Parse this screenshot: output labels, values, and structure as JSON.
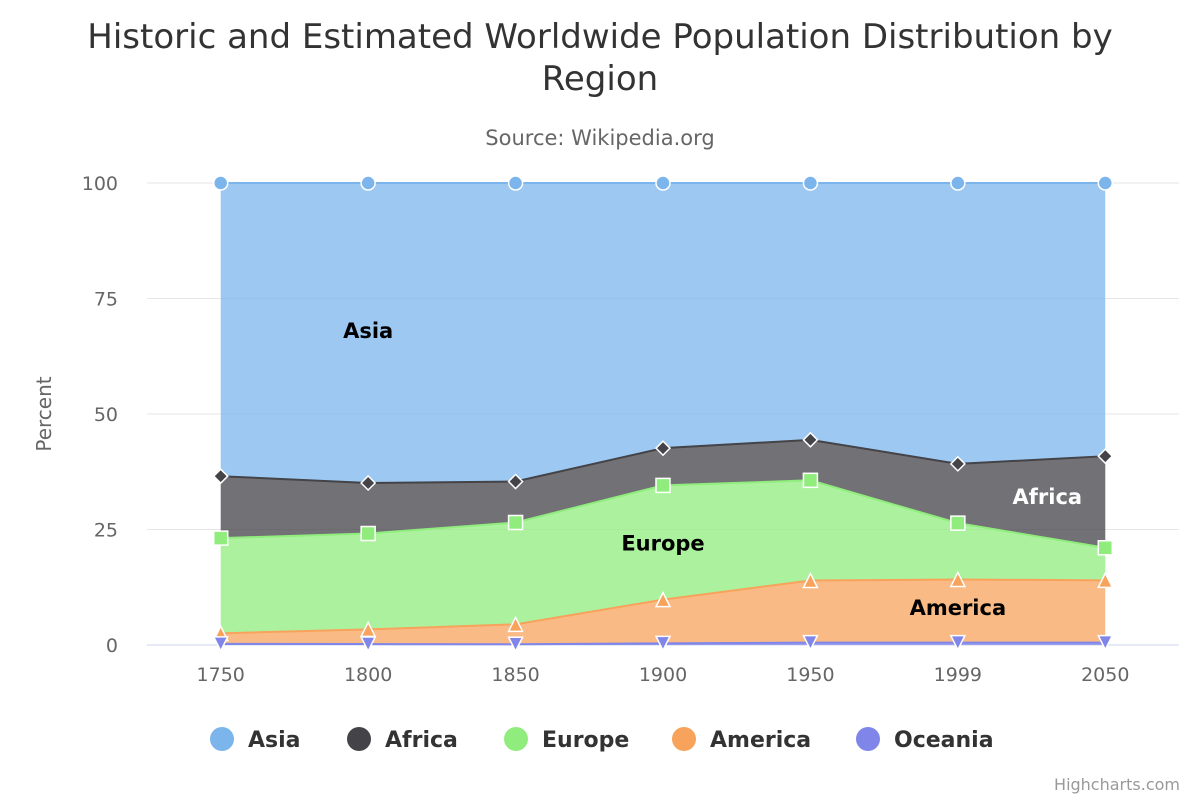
{
  "chart_data": {
    "type": "area",
    "stacking": "percent",
    "title": "Historic and Estimated Worldwide Population Distribution by Region",
    "subtitle": "Source: Wikipedia.org",
    "ylabel": "Percent",
    "xlabel": "",
    "ylim": [
      0,
      100
    ],
    "yticks": [
      "0",
      "25",
      "50",
      "75",
      "100"
    ],
    "grid": true,
    "legend_position": "bottom",
    "categories": [
      "1750",
      "1800",
      "1850",
      "1900",
      "1950",
      "1999",
      "2050"
    ],
    "series": [
      {
        "name": "Asia",
        "color": "#7cb5ec",
        "marker": "circle",
        "values": [
          502,
          635,
          809,
          947,
          1402,
          3634,
          5268
        ]
      },
      {
        "name": "Africa",
        "color": "#434348",
        "marker": "diamond",
        "values": [
          106,
          107,
          111,
          133,
          221,
          767,
          1766
        ]
      },
      {
        "name": "Europe",
        "color": "#90ed7d",
        "marker": "square",
        "values": [
          163,
          203,
          276,
          408,
          547,
          729,
          628
        ]
      },
      {
        "name": "America",
        "color": "#f7a35c",
        "marker": "triangle",
        "values": [
          18,
          31,
          54,
          156,
          339,
          818,
          1201
        ]
      },
      {
        "name": "Oceania",
        "color": "#8085e9",
        "marker": "triangle-down",
        "values": [
          2,
          2,
          2,
          6,
          13,
          30,
          46
        ]
      }
    ],
    "annotations": [
      {
        "text": "Asia",
        "series": "Asia",
        "category": "1800",
        "color": "#000000"
      },
      {
        "text": "Europe",
        "series": "Europe",
        "category": "1900",
        "color": "#000000"
      },
      {
        "text": "Africa",
        "series": "Africa",
        "category": "2050",
        "color": "#ffffff"
      },
      {
        "text": "America",
        "series": "America",
        "category": "1999",
        "color": "#000000"
      }
    ],
    "credits": "Highcharts.com"
  }
}
